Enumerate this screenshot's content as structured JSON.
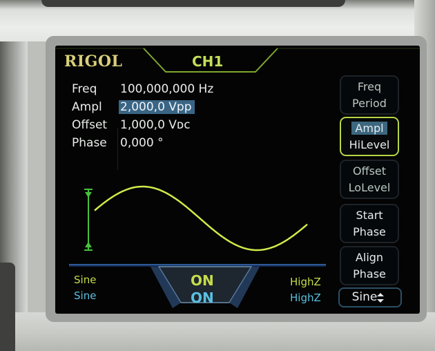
{
  "device": {
    "brand": "RIGOL",
    "channel": "CH1"
  },
  "parameters": [
    {
      "label": "Freq",
      "value": "100,000,000 Hz"
    },
    {
      "label": "Ampl",
      "value": "2,000,0 Vpp"
    },
    {
      "label": "Offset",
      "value": "1,000,0 Vᴅᴄ"
    },
    {
      "label": "Phase",
      "value": "0,000 °"
    }
  ],
  "softkeys": [
    {
      "top": "Freq",
      "bottom": "Period"
    },
    {
      "top": "Ampl",
      "bottom": "HiLevel"
    },
    {
      "top": "Offset",
      "bottom": "LoLevel"
    },
    {
      "top": "Start",
      "bottom": "Phase"
    },
    {
      "top": "Align",
      "bottom": "Phase"
    }
  ],
  "waveform_select": {
    "value": "Sine"
  },
  "status": {
    "ch1": {
      "wave": "Sine",
      "output": "ON",
      "load": "HighZ"
    },
    "ch2": {
      "wave": "Sine",
      "output": "ON",
      "load": "HighZ"
    }
  },
  "colors": {
    "wave": "#d2ea4a",
    "ch1_status": "#c6dc4a",
    "ch2_status": "#5bc0e0",
    "highlight": "#3a6585",
    "active_border": "#b7d646"
  },
  "icons": {
    "amplitude_marker": "amplitude-marker-icon",
    "select_arrows": "up-down-arrow-icon"
  }
}
